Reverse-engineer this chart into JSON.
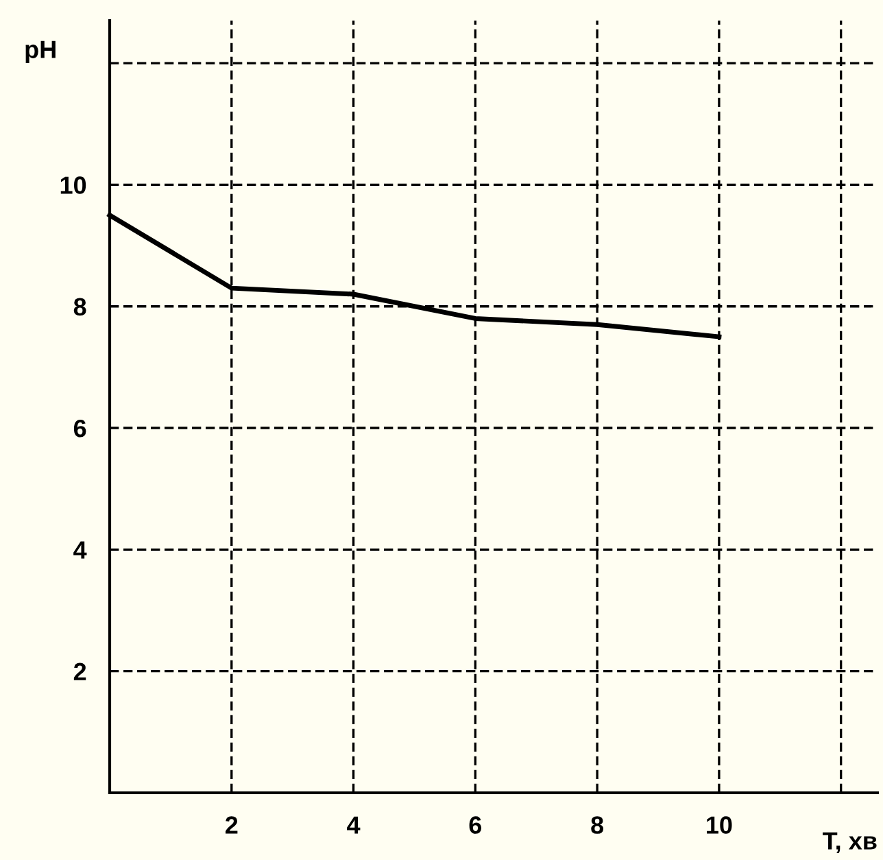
{
  "chart_data": {
    "type": "line",
    "xlabel": "T, хв",
    "ylabel": "pH",
    "x": [
      0,
      2,
      4,
      6,
      8,
      10
    ],
    "series": [
      {
        "color": "#000000",
        "values": [
          9.5,
          8.3,
          8.2,
          7.8,
          7.7,
          7.5
        ]
      }
    ],
    "xlim": [
      0,
      12.6
    ],
    "ylim": [
      0,
      12.7
    ],
    "xticks": [
      2,
      4,
      6,
      8,
      10,
      {
        "value": 12,
        "label": null
      }
    ],
    "yticks": [
      2,
      4,
      6,
      8,
      10,
      {
        "value": 12,
        "label": null
      }
    ],
    "grid": true,
    "marker": "none",
    "line_style": "solid"
  }
}
